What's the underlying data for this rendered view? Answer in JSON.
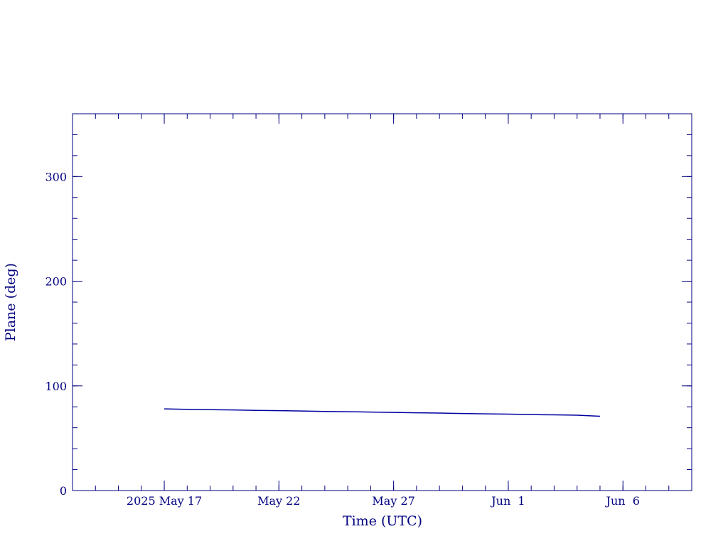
{
  "chart_data": {
    "type": "line",
    "xlabel": "Time (UTC)",
    "ylabel": "Plane (deg)",
    "x": [
      "2025-05-17",
      "2025-05-18",
      "2025-05-19",
      "2025-05-20",
      "2025-05-21",
      "2025-05-22",
      "2025-05-23",
      "2025-05-24",
      "2025-05-25",
      "2025-05-26",
      "2025-05-27",
      "2025-05-28",
      "2025-05-29",
      "2025-05-30",
      "2025-05-31",
      "2025-06-01",
      "2025-06-02",
      "2025-06-03",
      "2025-06-04",
      "2025-06-05"
    ],
    "series": [
      {
        "color": "#0000a0",
        "values": [
          78,
          77.6,
          77.3,
          77,
          76.6,
          76.3,
          76,
          75.6,
          75.3,
          75,
          74.6,
          74.3,
          74,
          73.6,
          73.3,
          73,
          72.6,
          72.3,
          72,
          71
        ]
      }
    ],
    "xlim": [
      "2025-05-13",
      "2025-06-09"
    ],
    "xticks": [
      {
        "value": "2025-05-17",
        "label": "2025 May 17"
      },
      {
        "value": "2025-05-22",
        "label": "May 22"
      },
      {
        "value": "2025-05-27",
        "label": "May 27"
      },
      {
        "value": "2025-06-01",
        "label": "Jun  1"
      },
      {
        "value": "2025-06-06",
        "label": "Jun  6"
      }
    ],
    "xminor_step_days": 1,
    "ylim": [
      0,
      360
    ],
    "yticks": [
      0,
      100,
      200,
      300
    ],
    "yminor_step": 20,
    "axis_color": "#000080"
  }
}
